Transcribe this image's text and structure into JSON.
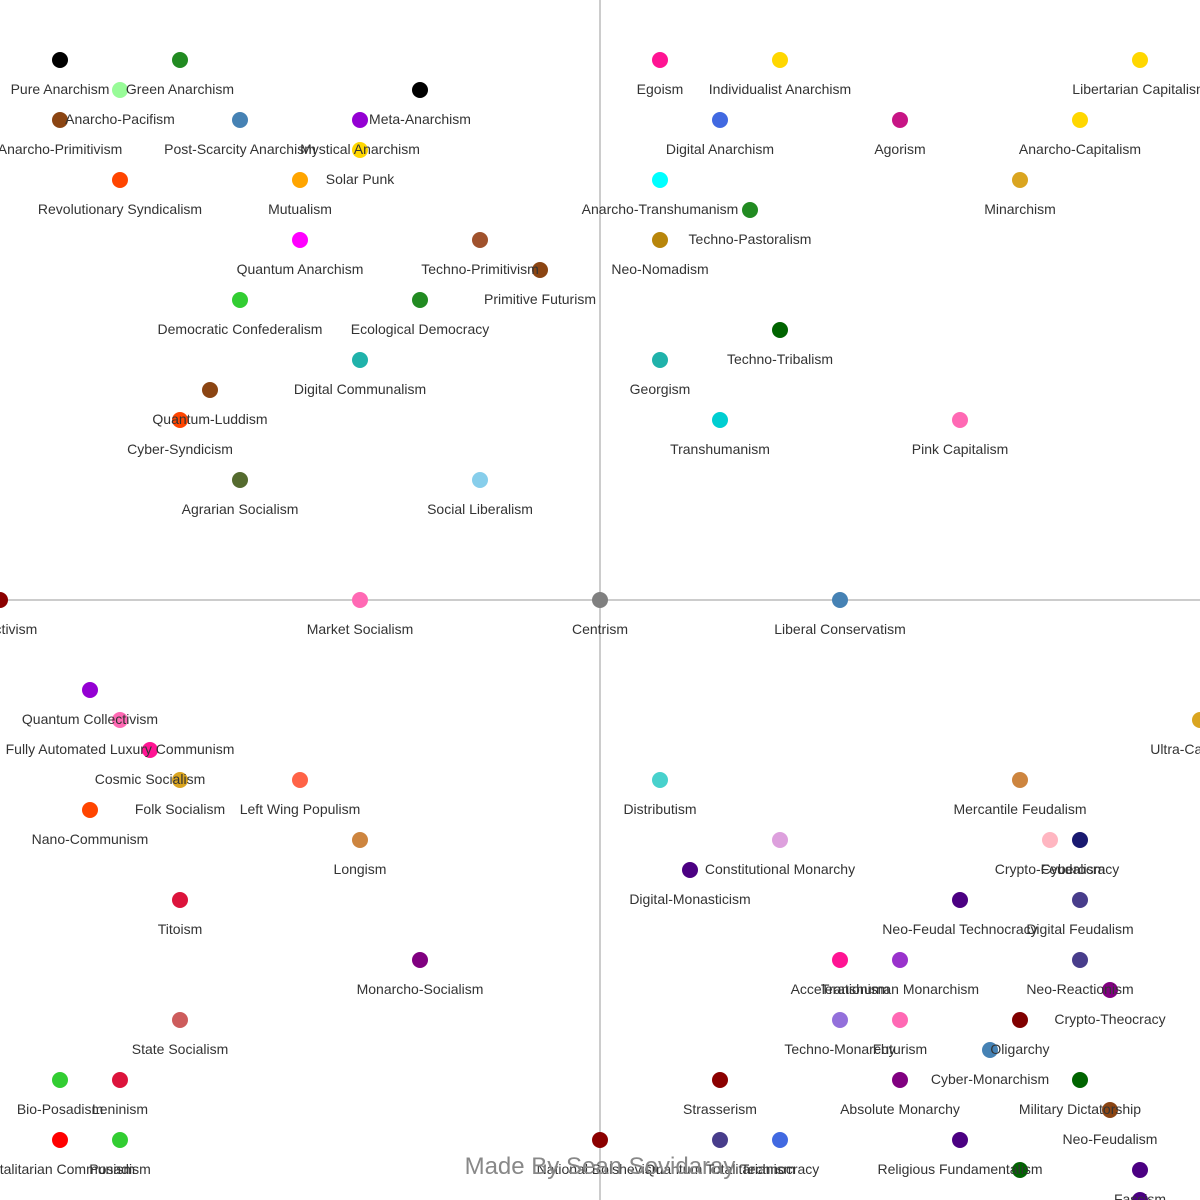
{
  "chart_data": {
    "type": "scatter",
    "title": "",
    "xlabel": "",
    "ylabel": "",
    "xlim": [
      -10,
      10
    ],
    "ylim": [
      -10,
      10
    ],
    "grid": false,
    "axis_color": "#cccccc",
    "credit": "Made By Sean Sovidaray",
    "points": [
      {
        "label": "Pure Anarchism",
        "x": -9.0,
        "y": 9.0,
        "color": "#000000"
      },
      {
        "label": "Green Anarchism",
        "x": -7.0,
        "y": 9.0,
        "color": "#228b22"
      },
      {
        "label": "Anarcho-Pacifism",
        "x": -8.0,
        "y": 8.5,
        "color": "#98fb98"
      },
      {
        "label": "Anarcho-Primitivism",
        "x": -9.0,
        "y": 8.0,
        "color": "#8b4513"
      },
      {
        "label": "Post-Scarcity Anarchism",
        "x": -6.0,
        "y": 8.0,
        "color": "#4682b4"
      },
      {
        "label": "Meta-Anarchism",
        "x": -3.0,
        "y": 8.5,
        "color": "#000000"
      },
      {
        "label": "Mystical Anarchism",
        "x": -4.0,
        "y": 8.0,
        "color": "#9400d3"
      },
      {
        "label": "Solar Punk",
        "x": -4.0,
        "y": 7.5,
        "color": "#ffd700"
      },
      {
        "label": "Revolutionary Syndicalism",
        "x": -8.0,
        "y": 7.0,
        "color": "#ff4500"
      },
      {
        "label": "Mutualism",
        "x": -5.0,
        "y": 7.0,
        "color": "#ffa500"
      },
      {
        "label": "Quantum Anarchism",
        "x": -5.0,
        "y": 6.0,
        "color": "#ff00ff"
      },
      {
        "label": "Techno-Primitivism",
        "x": -2.0,
        "y": 6.0,
        "color": "#a0522d"
      },
      {
        "label": "Primitive Futurism",
        "x": -1.0,
        "y": 5.5,
        "color": "#8b4513"
      },
      {
        "label": "Democratic Confederalism",
        "x": -6.0,
        "y": 5.0,
        "color": "#32cd32"
      },
      {
        "label": "Ecological Democracy",
        "x": -3.0,
        "y": 5.0,
        "color": "#228b22"
      },
      {
        "label": "Digital Communalism",
        "x": -4.0,
        "y": 4.0,
        "color": "#20b2aa"
      },
      {
        "label": "Quantum-Luddism",
        "x": -6.5,
        "y": 3.5,
        "color": "#8b4513"
      },
      {
        "label": "Cyber-Syndicism",
        "x": -7.0,
        "y": 3.0,
        "color": "#ff4500"
      },
      {
        "label": "Agrarian Socialism",
        "x": -6.0,
        "y": 2.0,
        "color": "#556b2f"
      },
      {
        "label": "Social Liberalism",
        "x": -2.0,
        "y": 2.0,
        "color": "#87ceeb"
      },
      {
        "label": "Egoism",
        "x": 1.0,
        "y": 9.0,
        "color": "#ff1493"
      },
      {
        "label": "Individualist Anarchism",
        "x": 3.0,
        "y": 9.0,
        "color": "#ffd700"
      },
      {
        "label": "Libertarian Capitalism",
        "x": 9.0,
        "y": 9.0,
        "color": "#ffd700"
      },
      {
        "label": "Digital Anarchism",
        "x": 2.0,
        "y": 8.0,
        "color": "#4169e1"
      },
      {
        "label": "Agorism",
        "x": 5.0,
        "y": 8.0,
        "color": "#c71585"
      },
      {
        "label": "Anarcho-Capitalism",
        "x": 8.0,
        "y": 8.0,
        "color": "#ffd700"
      },
      {
        "label": "Anarcho-Transhumanism",
        "x": 1.0,
        "y": 7.0,
        "color": "#00ffff"
      },
      {
        "label": "Minarchism",
        "x": 7.0,
        "y": 7.0,
        "color": "#daa520"
      },
      {
        "label": "Techno-Pastoralism",
        "x": 2.5,
        "y": 6.5,
        "color": "#228b22"
      },
      {
        "label": "Neo-Nomadism",
        "x": 1.0,
        "y": 6.0,
        "color": "#b8860b"
      },
      {
        "label": "Techno-Tribalism",
        "x": 3.0,
        "y": 4.5,
        "color": "#006400"
      },
      {
        "label": "Georgism",
        "x": 1.0,
        "y": 4.0,
        "color": "#20b2aa"
      },
      {
        "label": "Transhumanism",
        "x": 2.0,
        "y": 3.0,
        "color": "#00ced1"
      },
      {
        "label": "Pink Capitalism",
        "x": 6.0,
        "y": 3.0,
        "color": "#ff69b4"
      },
      {
        "label": "Collectivism",
        "x": -10.0,
        "y": 0.0,
        "color": "#8b0000"
      },
      {
        "label": "Market Socialism",
        "x": -4.0,
        "y": 0.0,
        "color": "#ff69b4"
      },
      {
        "label": "Centrism",
        "x": 0.0,
        "y": 0.0,
        "color": "#808080"
      },
      {
        "label": "Liberal Conservatism",
        "x": 4.0,
        "y": 0.0,
        "color": "#4682b4"
      },
      {
        "label": "Quantum Collectivism",
        "x": -8.5,
        "y": -1.5,
        "color": "#9400d3"
      },
      {
        "label": "Fully Automated Luxury Communism",
        "x": -8.0,
        "y": -2.0,
        "color": "#ff69b4"
      },
      {
        "label": "Cosmic Socialism",
        "x": -7.5,
        "y": -2.5,
        "color": "#ff1493"
      },
      {
        "label": "Folk Socialism",
        "x": -7.0,
        "y": -3.0,
        "color": "#daa520"
      },
      {
        "label": "Left Wing Populism",
        "x": -5.0,
        "y": -3.0,
        "color": "#ff6347"
      },
      {
        "label": "Nano-Communism",
        "x": -8.5,
        "y": -3.5,
        "color": "#ff4500"
      },
      {
        "label": "Longism",
        "x": -4.0,
        "y": -4.0,
        "color": "#cd853f"
      },
      {
        "label": "Titoism",
        "x": -7.0,
        "y": -5.0,
        "color": "#dc143c"
      },
      {
        "label": "Monarcho-Socialism",
        "x": -3.0,
        "y": -6.0,
        "color": "#800080"
      },
      {
        "label": "State Socialism",
        "x": -7.0,
        "y": -7.0,
        "color": "#cd5c5c"
      },
      {
        "label": "Bio-Posadism",
        "x": -9.0,
        "y": -8.0,
        "color": "#32cd32"
      },
      {
        "label": "Leninism",
        "x": -8.0,
        "y": -8.0,
        "color": "#dc143c"
      },
      {
        "label": "Totalitarian Communism",
        "x": -9.0,
        "y": -9.0,
        "color": "#ff0000"
      },
      {
        "label": "Posadism",
        "x": -8.0,
        "y": -9.0,
        "color": "#32cd32"
      },
      {
        "label": "Distributism",
        "x": 1.0,
        "y": -3.0,
        "color": "#48d1cc"
      },
      {
        "label": "Mercantile Feudalism",
        "x": 7.0,
        "y": -3.0,
        "color": "#cd853f"
      },
      {
        "label": "Constitutional Monarchy",
        "x": 3.0,
        "y": -4.0,
        "color": "#dda0dd"
      },
      {
        "label": "Digital-Monasticism",
        "x": 1.5,
        "y": -4.5,
        "color": "#4b0082"
      },
      {
        "label": "Crypto-Feudalism",
        "x": 7.5,
        "y": -4.0,
        "color": "#ffb6c1"
      },
      {
        "label": "Cyberocracy",
        "x": 8.0,
        "y": -4.0,
        "color": "#191970"
      },
      {
        "label": "Neo-Feudal Technocracy",
        "x": 6.0,
        "y": -5.0,
        "color": "#4b0082"
      },
      {
        "label": "Digital Feudalism",
        "x": 8.0,
        "y": -5.0,
        "color": "#483d8b"
      },
      {
        "label": "Accelerationism",
        "x": 4.0,
        "y": -6.0,
        "color": "#ff1493"
      },
      {
        "label": "Transhuman Monarchism",
        "x": 5.0,
        "y": -6.0,
        "color": "#9932cc"
      },
      {
        "label": "Neo-Reactionism",
        "x": 8.0,
        "y": -6.0,
        "color": "#483d8b"
      },
      {
        "label": "Crypto-Theocracy",
        "x": 8.5,
        "y": -6.5,
        "color": "#800080"
      },
      {
        "label": "Techno-Monarchy",
        "x": 4.0,
        "y": -7.0,
        "color": "#9370db"
      },
      {
        "label": "Futurism",
        "x": 5.0,
        "y": -7.0,
        "color": "#ff69b4"
      },
      {
        "label": "Oligarchy",
        "x": 7.0,
        "y": -7.0,
        "color": "#800000"
      },
      {
        "label": "Cyber-Monarchism",
        "x": 6.5,
        "y": -7.5,
        "color": "#4682b4"
      },
      {
        "label": "Strasserism",
        "x": 2.0,
        "y": -8.0,
        "color": "#8b0000"
      },
      {
        "label": "Absolute Monarchy",
        "x": 5.0,
        "y": -8.0,
        "color": "#800080"
      },
      {
        "label": "Military Dictatorship",
        "x": 8.0,
        "y": -8.0,
        "color": "#006400"
      },
      {
        "label": "Neo-Feudalism",
        "x": 8.5,
        "y": -8.5,
        "color": "#8b4513"
      },
      {
        "label": "National Bolshevism",
        "x": 0.0,
        "y": -9.0,
        "color": "#8b0000"
      },
      {
        "label": "Quantum Totalitarianism",
        "x": 2.0,
        "y": -9.0,
        "color": "#483d8b"
      },
      {
        "label": "Technocracy",
        "x": 3.0,
        "y": -9.0,
        "color": "#4169e1"
      },
      {
        "label": "Religious Fundamentalism",
        "x": 6.0,
        "y": -9.0,
        "color": "#4b0082"
      },
      {
        "label": "Ultra-Capitalism",
        "x": 10.0,
        "y": -2.0,
        "color": "#daa520"
      },
      {
        "label": "Fascism",
        "x": 9.0,
        "y": -9.5,
        "color": "#4b0082"
      }
    ],
    "partial_markers": [
      {
        "x": 7.0,
        "y": -9.5,
        "color": "#006400"
      },
      {
        "x": 9.0,
        "y": -10.0,
        "color": "#4b0082"
      }
    ]
  }
}
